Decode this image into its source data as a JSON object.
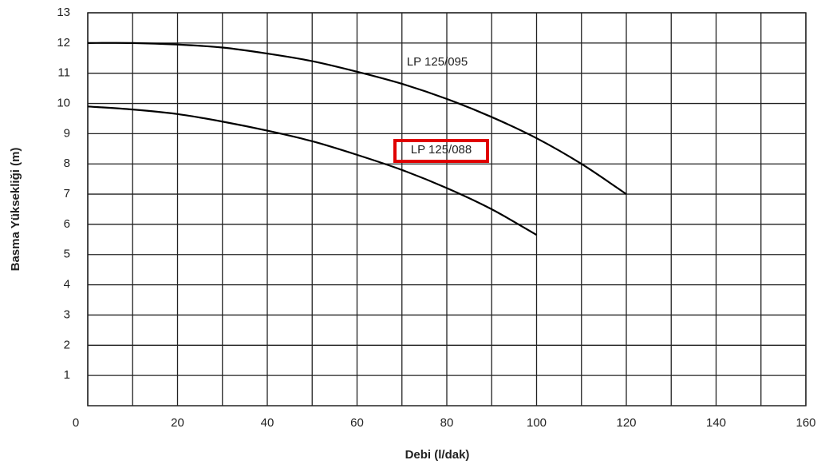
{
  "chart_data": {
    "type": "line",
    "xlabel": "Debi (l/dak)",
    "ylabel": "Basma Yüksekliği (m)",
    "xlim": [
      0,
      160
    ],
    "xticks": [
      0,
      20,
      40,
      60,
      80,
      100,
      120,
      140,
      160
    ],
    "x_minor_grid": [
      10,
      30,
      50,
      70,
      90,
      110,
      130,
      150
    ],
    "ylim": [
      0,
      13
    ],
    "yticks": [
      1,
      2,
      3,
      4,
      5,
      6,
      7,
      8,
      9,
      10,
      11,
      12,
      13
    ],
    "grid": true,
    "series": [
      {
        "name": "LP 125/095",
        "color": "#000000",
        "x": [
          0,
          10,
          20,
          30,
          40,
          50,
          60,
          70,
          80,
          90,
          100,
          110,
          120
        ],
        "values": [
          12.0,
          12.0,
          11.95,
          11.85,
          11.65,
          11.4,
          11.05,
          10.65,
          10.15,
          9.55,
          8.85,
          8.0,
          7.0
        ]
      },
      {
        "name": "LP 125/088",
        "color": "#000000",
        "highlight": "#e00000",
        "x": [
          0,
          10,
          20,
          30,
          40,
          50,
          60,
          70,
          80,
          90,
          100
        ],
        "values": [
          9.9,
          9.8,
          9.65,
          9.4,
          9.1,
          8.75,
          8.3,
          7.8,
          7.2,
          6.5,
          5.65
        ]
      }
    ]
  }
}
